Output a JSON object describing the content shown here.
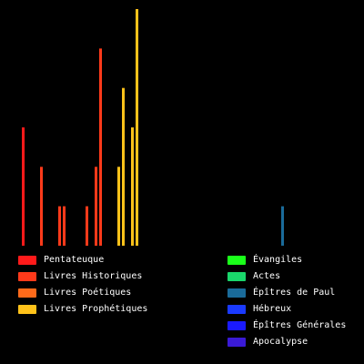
{
  "chart_data": {
    "type": "bar",
    "ylim": [
      0,
      60
    ],
    "grid": false,
    "legend": "bottom",
    "series": [
      {
        "name": "Pentateuque",
        "color": "#ff1a1a",
        "values": [
          30
        ]
      },
      {
        "name": "Livres Historiques",
        "color": "#ff3a1a",
        "values": [
          20,
          10,
          10,
          10,
          20,
          50
        ]
      },
      {
        "name": "Livres Poétiques",
        "color": "#ff6a1a",
        "values": []
      },
      {
        "name": "Livres Prophétiques",
        "color": "#ffc21a",
        "values": [
          20,
          40,
          30,
          60
        ]
      },
      {
        "name": "Évangiles",
        "color": "#1aff1a",
        "values": []
      },
      {
        "name": "Actes",
        "color": "#1ad66b",
        "values": []
      },
      {
        "name": "Épîtres de Paul",
        "color": "#1a6b9a",
        "values": [
          10
        ]
      },
      {
        "name": "Hébreux",
        "color": "#1a3aff",
        "values": []
      },
      {
        "name": "Épîtres Générales",
        "color": "#1a1aff",
        "values": []
      },
      {
        "name": "Apocalypse",
        "color": "#3a1ad6",
        "values": []
      }
    ]
  }
}
